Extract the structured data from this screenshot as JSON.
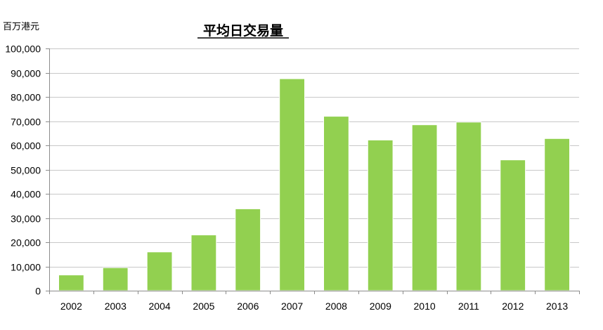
{
  "chart_data": {
    "type": "bar",
    "title": "平均日交易量",
    "ylabel": "百万港元",
    "xlabel": "",
    "categories": [
      "2002",
      "2003",
      "2004",
      "2005",
      "2006",
      "2007",
      "2008",
      "2009",
      "2010",
      "2011",
      "2012",
      "2013"
    ],
    "values": [
      6500,
      9500,
      16000,
      23000,
      33800,
      87500,
      72000,
      62200,
      68500,
      69600,
      54000,
      62800
    ],
    "ylim": [
      0,
      100000
    ],
    "yticks": [
      0,
      10000,
      20000,
      30000,
      40000,
      50000,
      60000,
      70000,
      80000,
      90000,
      100000
    ],
    "ytick_labels": [
      "0",
      "10,000",
      "20,000",
      "30,000",
      "40,000",
      "50,000",
      "60,000",
      "70,000",
      "80,000",
      "90,000",
      "100,000"
    ],
    "grid": true,
    "bar_color": "#92d050",
    "bar_edge_color": "#ffffff"
  }
}
